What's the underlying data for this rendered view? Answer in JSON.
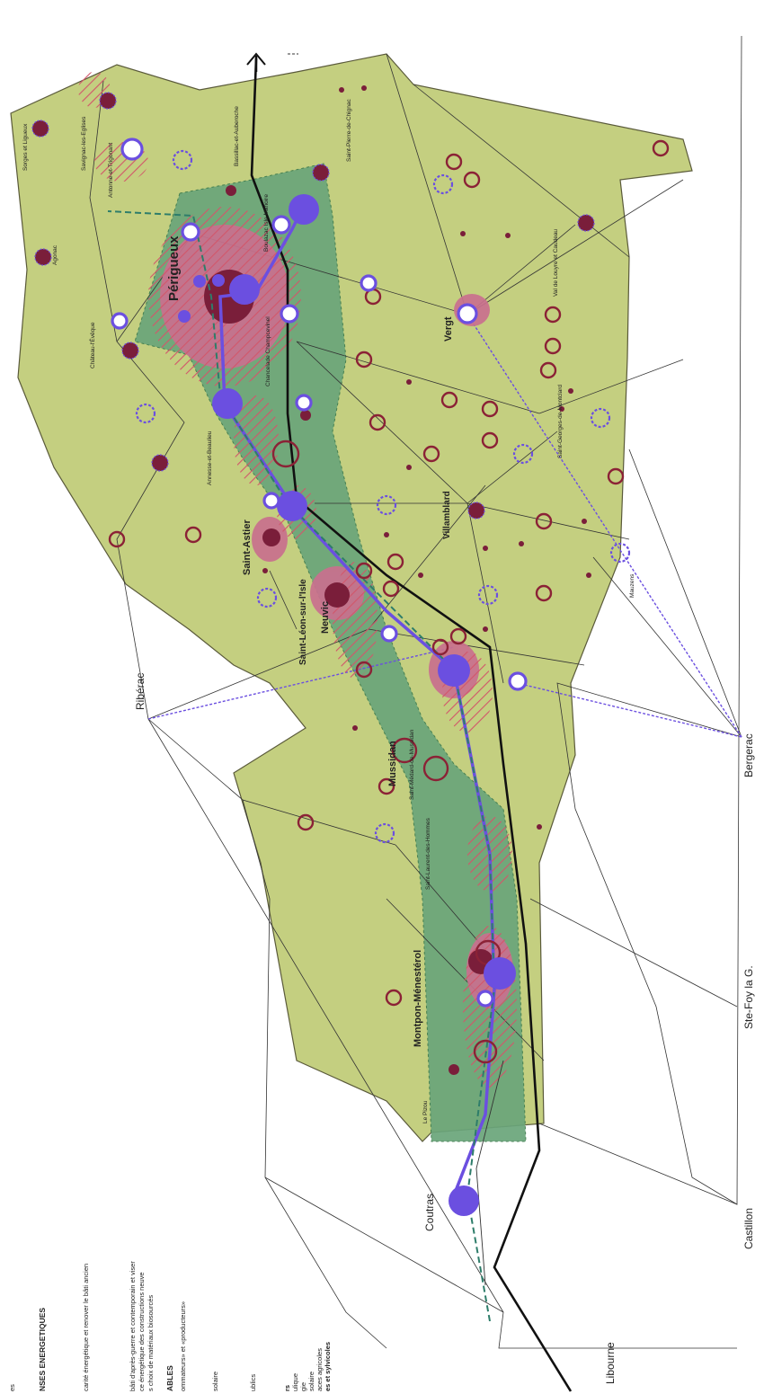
{
  "legend": {
    "heading_1": "NSES ENERGETIQUES",
    "line_1": "carité énergétique et renover le bâti ancien",
    "line_2": "bâti d'après-guerre et contemporain et viser",
    "line_3": "ce énergétique des constructions neuve",
    "line_4": "s choix de matériaux biosourcés",
    "heading_2": "ABLES",
    "line_5": "ommateurs» et «producteurs»",
    "line_6": "solaire",
    "line_7": "ublics",
    "line_8": "rs",
    "line_9": "ulique",
    "line_10": "gie",
    "line_11": "solaire",
    "line_12": "aces agricoles",
    "line_13": "es et sylvicoles",
    "line_0": "es"
  },
  "cities": {
    "major": [
      "Périgueux",
      "Saint-Astier",
      "Neuvic",
      "Mussidan",
      "Montpon-Ménestérol",
      "Vergt",
      "Villamblard",
      "Saint-Léon-sur-l'Isle"
    ],
    "external": [
      "Ribérac",
      "Bergerac",
      "Ste-Foy la G.",
      "Castillon",
      "Libourne",
      "Coutras"
    ],
    "minor": [
      "Sorges et Ligueux",
      "Savignac-les-Eglises",
      "Antonne-et-Trigonant",
      "Bassillac-et-Auberoche",
      "Saint-Pierre-de-Chignac",
      "Boulazac Isle Manoire",
      "Agonac",
      "Château-l'Évêque",
      "Chancelade Champcevinel",
      "Annesse-et-Beaulieu",
      "Val de Louyre et Caudeau",
      "Saint-Georges-de-Montclard",
      "Mauzens",
      "Saint-Médard-de-Mussidan",
      "Saint-Laurent-des-Hommes",
      "Le Pizou"
    ]
  },
  "colors": {
    "territory": "#c4cf80",
    "corridor": "#6aa57a",
    "urban": "#c9708e",
    "dark_core": "#7a1e3a",
    "node": "#6b4fe0",
    "hatch": "#d2566a",
    "ring": "#8b2236"
  }
}
